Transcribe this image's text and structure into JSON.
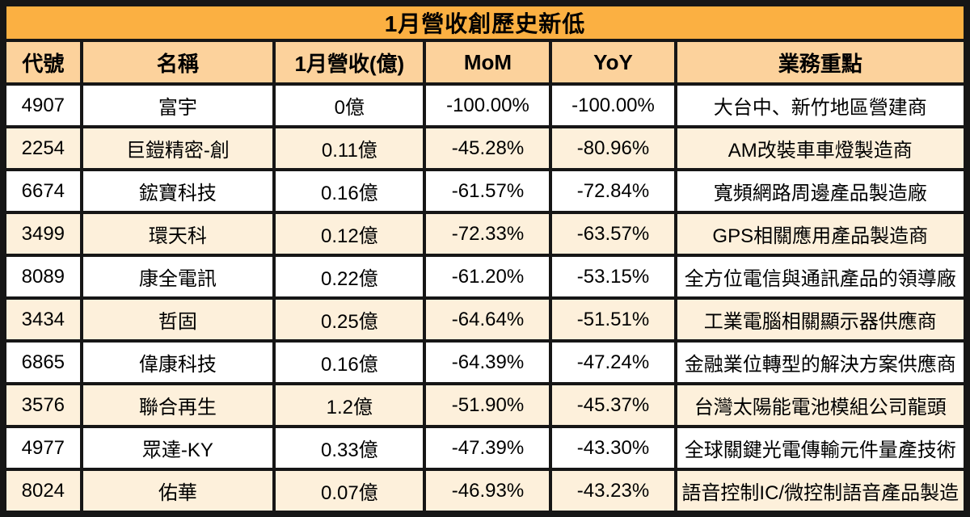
{
  "chart_data": {
    "type": "table",
    "title": "1月營收創歷史新低",
    "columns": [
      "代號",
      "名稱",
      "1月營收(億)",
      "MoM",
      "YoY",
      "業務重點"
    ],
    "rows": [
      {
        "code": "4907",
        "name": "富宇",
        "revenue": "0億",
        "mom": "-100.00%",
        "yoy": "-100.00%",
        "focus": "大台中、新竹地區營建商"
      },
      {
        "code": "2254",
        "name": "巨鎧精密-創",
        "revenue": "0.11億",
        "mom": "-45.28%",
        "yoy": "-80.96%",
        "focus": "AM改裝車車燈製造商"
      },
      {
        "code": "6674",
        "name": "鋐寶科技",
        "revenue": "0.16億",
        "mom": "-61.57%",
        "yoy": "-72.84%",
        "focus": "寬頻網路周邊產品製造廠"
      },
      {
        "code": "3499",
        "name": "環天科",
        "revenue": "0.12億",
        "mom": "-72.33%",
        "yoy": "-63.57%",
        "focus": "GPS相關應用產品製造商"
      },
      {
        "code": "8089",
        "name": "康全電訊",
        "revenue": "0.22億",
        "mom": "-61.20%",
        "yoy": "-53.15%",
        "focus": "全方位電信與通訊產品的領導廠"
      },
      {
        "code": "3434",
        "name": "哲固",
        "revenue": "0.25億",
        "mom": "-64.64%",
        "yoy": "-51.51%",
        "focus": "工業電腦相關顯示器供應商"
      },
      {
        "code": "6865",
        "name": "偉康科技",
        "revenue": "0.16億",
        "mom": "-64.39%",
        "yoy": "-47.24%",
        "focus": "金融業位轉型的解決方案供應商"
      },
      {
        "code": "3576",
        "name": "聯合再生",
        "revenue": "1.2億",
        "mom": "-51.90%",
        "yoy": "-45.37%",
        "focus": "台灣太陽能電池模組公司龍頭"
      },
      {
        "code": "4977",
        "name": "眾達-KY",
        "revenue": "0.33億",
        "mom": "-47.39%",
        "yoy": "-43.30%",
        "focus": "全球關鍵光電傳輸元件量產技術"
      },
      {
        "code": "8024",
        "name": "佑華",
        "revenue": "0.07億",
        "mom": "-46.93%",
        "yoy": "-43.23%",
        "focus": "語音控制IC/微控制語音產品製造"
      }
    ]
  },
  "colors": {
    "title_bg": "#FBB042",
    "header_bg": "#FCD29C",
    "row_odd_bg": "#FFFFFF",
    "row_even_bg": "#FDF0DB",
    "border": "#161616",
    "text": "#000000"
  }
}
